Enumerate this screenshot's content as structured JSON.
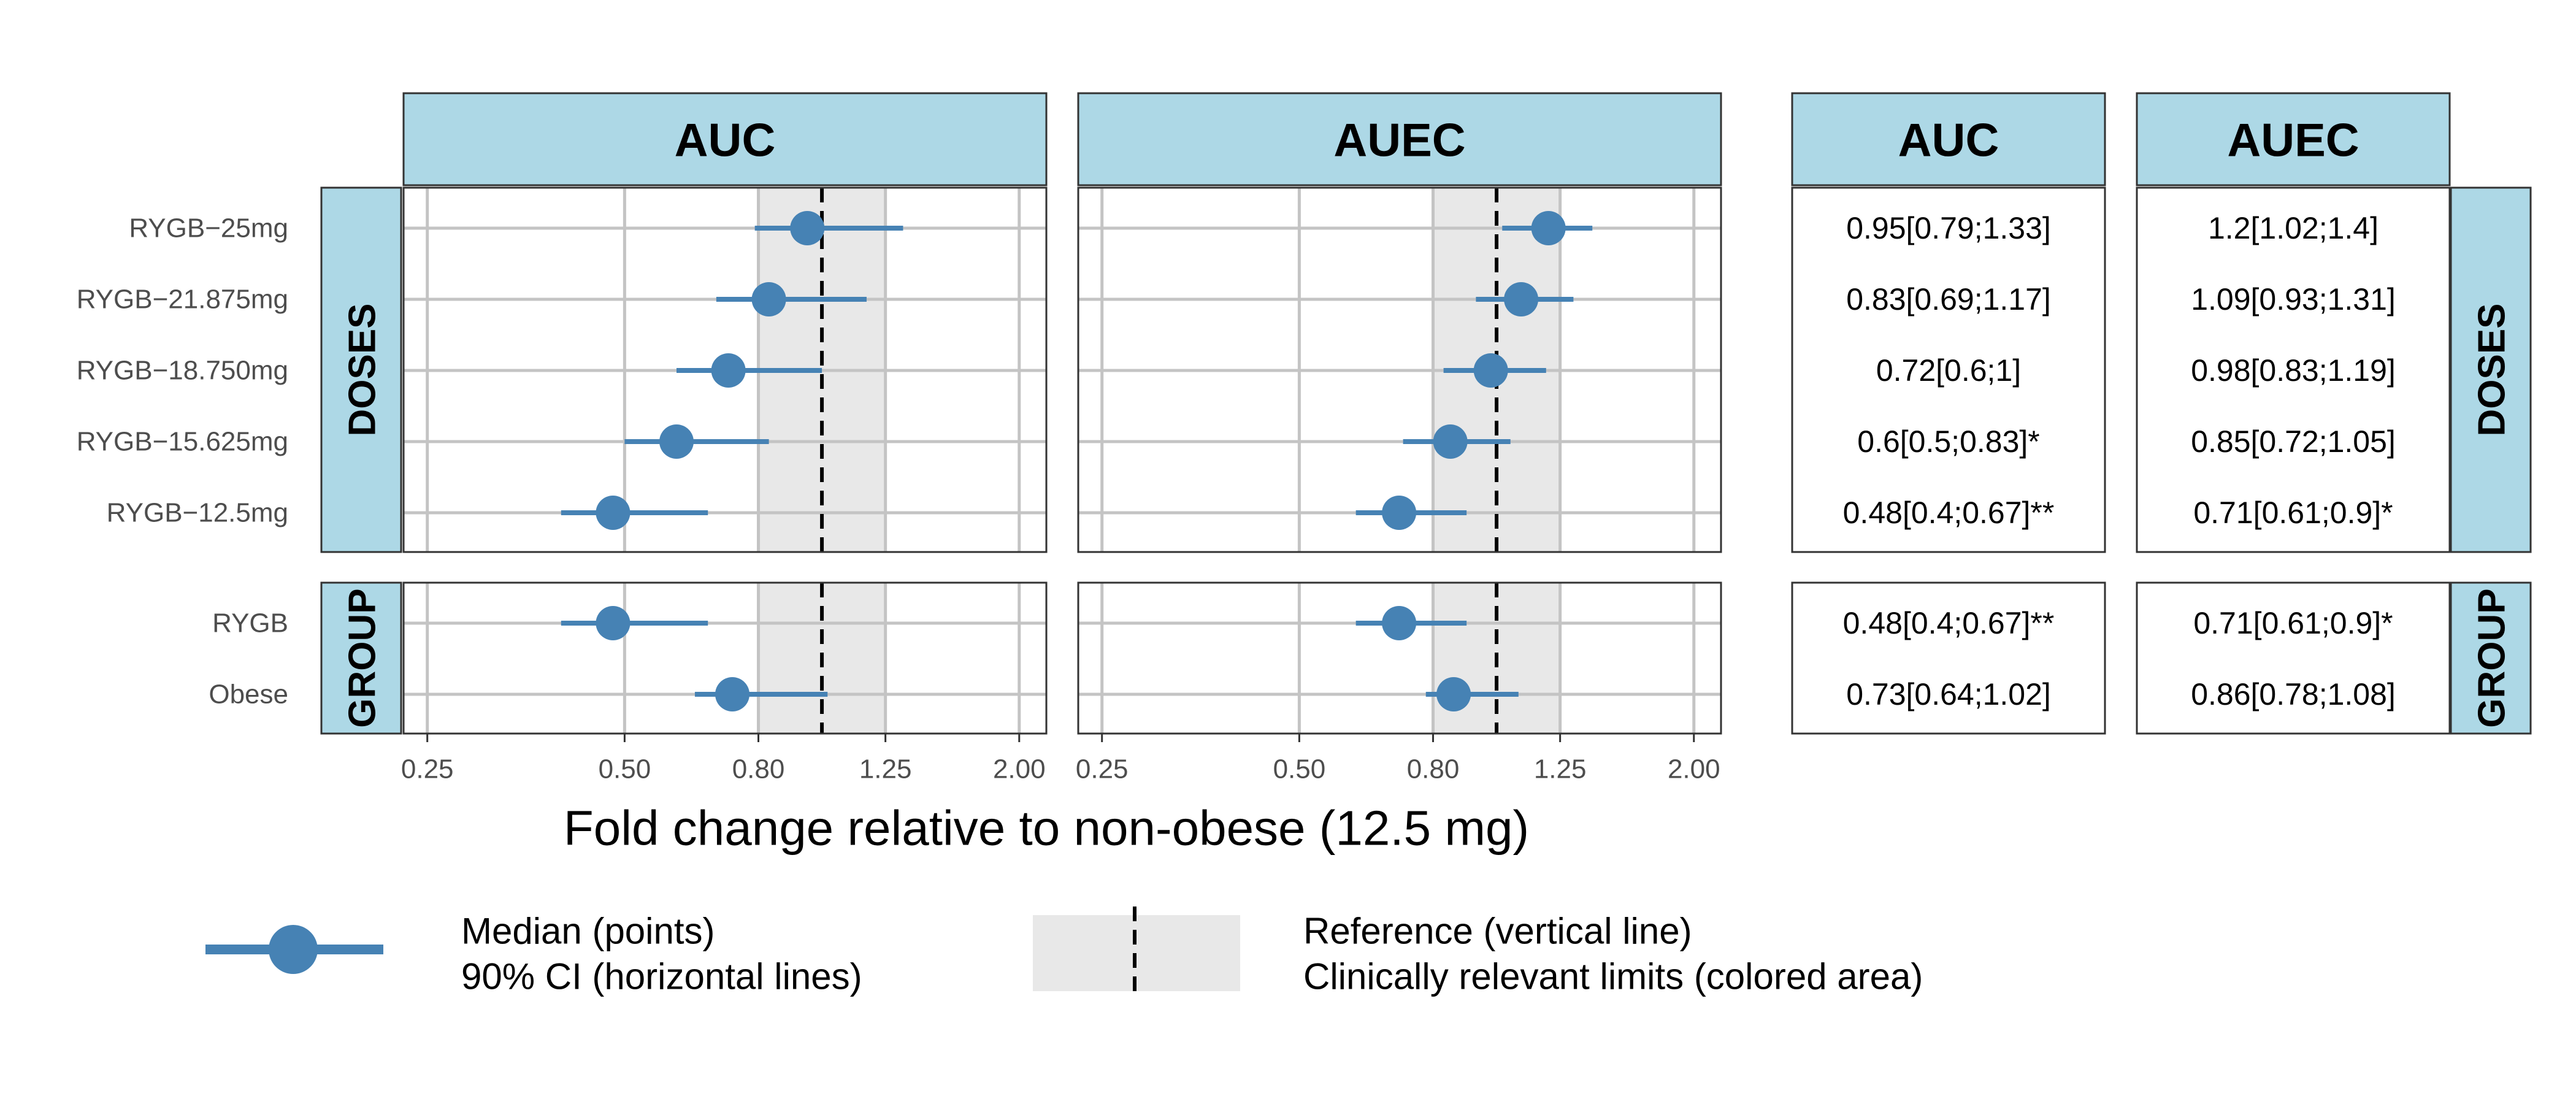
{
  "chart_data": {
    "type": "forest",
    "xlabel": "Fold change relative to non-obese (12.5 mg)",
    "x_scale": "log",
    "xlim": [
      0.23,
      2.2
    ],
    "x_ticks": [
      "0.25",
      "0.50",
      "0.80",
      "1.25",
      "2.00"
    ],
    "reference_line": 1.0,
    "clinically_relevant_limits": [
      0.8,
      1.25
    ],
    "metrics": [
      "AUC",
      "AUEC"
    ],
    "facets": [
      {
        "label": "DOSES",
        "rows": [
          {
            "label": "RYGB−25mg",
            "AUC": {
              "median": 0.95,
              "lo": 0.79,
              "hi": 1.33,
              "text": "0.95[0.79;1.33]"
            },
            "AUEC": {
              "median": 1.2,
              "lo": 1.02,
              "hi": 1.4,
              "text": "1.2[1.02;1.4]"
            }
          },
          {
            "label": "RYGB−21.875mg",
            "AUC": {
              "median": 0.83,
              "lo": 0.69,
              "hi": 1.17,
              "text": "0.83[0.69;1.17]"
            },
            "AUEC": {
              "median": 1.09,
              "lo": 0.93,
              "hi": 1.31,
              "text": "1.09[0.93;1.31]"
            }
          },
          {
            "label": "RYGB−18.750mg",
            "AUC": {
              "median": 0.72,
              "lo": 0.6,
              "hi": 1.0,
              "text": "0.72[0.6;1]"
            },
            "AUEC": {
              "median": 0.98,
              "lo": 0.83,
              "hi": 1.19,
              "text": "0.98[0.83;1.19]"
            }
          },
          {
            "label": "RYGB−15.625mg",
            "AUC": {
              "median": 0.6,
              "lo": 0.5,
              "hi": 0.83,
              "text": "0.6[0.5;0.83]*"
            },
            "AUEC": {
              "median": 0.85,
              "lo": 0.72,
              "hi": 1.05,
              "text": "0.85[0.72;1.05]"
            }
          },
          {
            "label": "RYGB−12.5mg",
            "AUC": {
              "median": 0.48,
              "lo": 0.4,
              "hi": 0.67,
              "text": "0.48[0.4;0.67]**"
            },
            "AUEC": {
              "median": 0.71,
              "lo": 0.61,
              "hi": 0.9,
              "text": "0.71[0.61;0.9]*"
            }
          }
        ]
      },
      {
        "label": "GROUP",
        "rows": [
          {
            "label": "RYGB",
            "AUC": {
              "median": 0.48,
              "lo": 0.4,
              "hi": 0.67,
              "text": "0.48[0.4;0.67]**"
            },
            "AUEC": {
              "median": 0.71,
              "lo": 0.61,
              "hi": 0.9,
              "text": "0.71[0.61;0.9]*"
            }
          },
          {
            "label": "Obese",
            "AUC": {
              "median": 0.73,
              "lo": 0.64,
              "hi": 1.02,
              "text": "0.73[0.64;1.02]"
            },
            "AUEC": {
              "median": 0.86,
              "lo": 0.78,
              "hi": 1.08,
              "text": "0.86[0.78;1.08]"
            }
          }
        ]
      }
    ],
    "legend": {
      "median": "Median (points)",
      "ci": "90% CI (horizontal lines)",
      "reference": "Reference (vertical line)",
      "limits": "Clinically relevant limits (colored area)"
    }
  },
  "colors": {
    "point": "#4682b4",
    "strip": "#add8e6",
    "band": "#e8e8e8",
    "grid": "#c4c4c4",
    "frame": "#333333",
    "text": "#000000",
    "tick_text": "#4d4d4d"
  }
}
